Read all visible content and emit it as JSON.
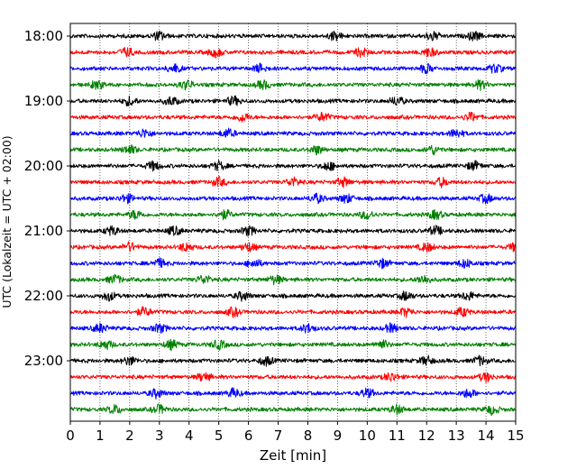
{
  "chart_data": {
    "type": "line",
    "title": "",
    "xlabel": "Zeit  [min]",
    "ylabel": "UTC (Lokalzeit = UTC + 02:00)",
    "xlim": [
      0,
      15
    ],
    "x_ticks": [
      "0",
      "1",
      "2",
      "3",
      "4",
      "5",
      "6",
      "7",
      "8",
      "9",
      "10",
      "11",
      "12",
      "13",
      "14",
      "15"
    ],
    "y_tick_labels": [
      "18:00",
      "19:00",
      "20:00",
      "21:00",
      "22:00",
      "23:00"
    ],
    "grid": "vertical dotted at each minute",
    "trace_interval_min": 15,
    "trace_color_cycle": [
      "#000000",
      "#ff0000",
      "#0000ff",
      "#008000"
    ],
    "traces": [
      {
        "start": "18:00",
        "bursts_min": [
          3.0,
          8.9,
          12.2,
          13.6
        ]
      },
      {
        "start": "18:15",
        "bursts_min": [
          1.9,
          4.9,
          9.8,
          12.1
        ]
      },
      {
        "start": "18:30",
        "bursts_min": [
          3.5,
          6.4,
          12.0,
          14.3
        ]
      },
      {
        "start": "18:45",
        "bursts_min": [
          0.9,
          3.9,
          6.5,
          13.8
        ]
      },
      {
        "start": "19:00",
        "bursts_min": [
          2.0,
          3.4,
          5.5,
          11.0
        ]
      },
      {
        "start": "19:15",
        "bursts_min": [
          5.8,
          8.5,
          13.5
        ]
      },
      {
        "start": "19:30",
        "bursts_min": [
          2.5,
          5.3,
          13.0
        ]
      },
      {
        "start": "19:45",
        "bursts_min": [
          2.0,
          8.3,
          12.2
        ]
      },
      {
        "start": "20:00",
        "bursts_min": [
          2.8,
          5.0,
          8.7,
          13.6
        ]
      },
      {
        "start": "20:15",
        "bursts_min": [
          5.0,
          7.5,
          9.2,
          12.5
        ]
      },
      {
        "start": "20:30",
        "bursts_min": [
          1.9,
          8.3,
          9.3,
          14.0
        ]
      },
      {
        "start": "20:45",
        "bursts_min": [
          2.2,
          5.2,
          10.0,
          12.3
        ]
      },
      {
        "start": "21:00",
        "bursts_min": [
          1.4,
          3.5,
          6.0,
          12.3
        ]
      },
      {
        "start": "21:15",
        "bursts_min": [
          2.0,
          3.9,
          6.0,
          12.0,
          15.0
        ]
      },
      {
        "start": "21:30",
        "bursts_min": [
          3.0,
          6.2,
          10.5,
          13.3
        ]
      },
      {
        "start": "21:45",
        "bursts_min": [
          1.5,
          4.5,
          6.9,
          11.9
        ]
      },
      {
        "start": "22:00",
        "bursts_min": [
          1.3,
          5.8,
          11.3,
          13.4
        ]
      },
      {
        "start": "22:15",
        "bursts_min": [
          2.5,
          5.5,
          11.3,
          13.2
        ]
      },
      {
        "start": "22:30",
        "bursts_min": [
          1.0,
          3.0,
          8.0,
          10.8
        ]
      },
      {
        "start": "22:45",
        "bursts_min": [
          1.2,
          3.4,
          5.0,
          10.5
        ]
      },
      {
        "start": "23:00",
        "bursts_min": [
          2.0,
          6.6,
          12.0,
          13.8
        ]
      },
      {
        "start": "23:15",
        "bursts_min": [
          4.5,
          10.8,
          14.0
        ]
      },
      {
        "start": "23:30",
        "bursts_min": [
          2.9,
          5.5,
          10.0,
          13.4
        ]
      },
      {
        "start": "23:45",
        "bursts_min": [
          1.5,
          3.0,
          11.0,
          14.2
        ]
      }
    ]
  }
}
